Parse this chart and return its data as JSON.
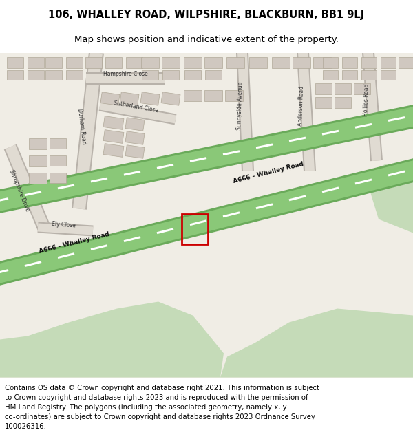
{
  "title_line1": "106, WHALLEY ROAD, WILPSHIRE, BLACKBURN, BB1 9LJ",
  "title_line2": "Map shows position and indicative extent of the property.",
  "footer_lines": [
    "Contains OS data © Crown copyright and database right 2021. This information is subject",
    "to Crown copyright and database rights 2023 and is reproduced with the permission of",
    "HM Land Registry. The polygons (including the associated geometry, namely x, y",
    "co-ordinates) are subject to Crown copyright and database rights 2023 Ordnance Survey",
    "100026316."
  ],
  "map_bg": "#f0ede5",
  "road_main_outer": "#6aaa5a",
  "road_main_inner": "#8ac878",
  "road_minor_fill": "#e0dbd2",
  "building_fill": "#d0c8c0",
  "building_edge": "#b0a898",
  "green_fill": "#c5dbb8",
  "plot_color": "#cc0000",
  "title_fontsize": 10.5,
  "subtitle_fontsize": 9.5,
  "footer_fontsize": 7.3,
  "label_fontsize": 5.5,
  "road_label_fontsize": 6.5
}
